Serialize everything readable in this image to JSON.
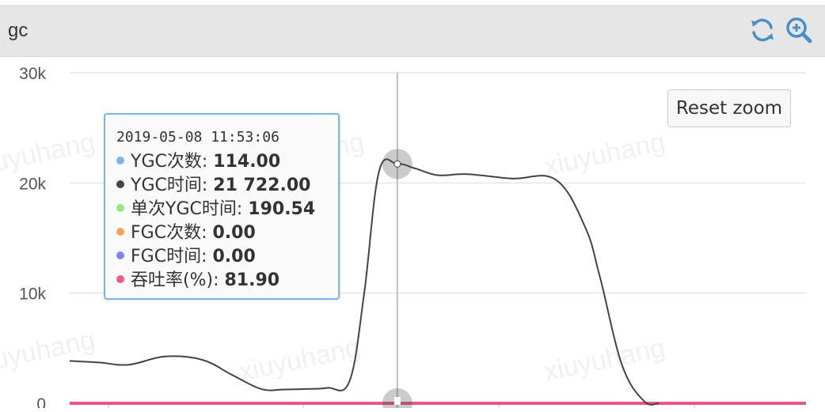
{
  "panel": {
    "title": "gc",
    "refresh_icon": "refresh-icon",
    "zoom_icon": "zoom-in-icon"
  },
  "reset_zoom_label": "Reset zoom",
  "watermark": "xiuyuhang",
  "tooltip": {
    "time": "2019-05-08 11:53:06",
    "rows": [
      {
        "label": "YGC次数: ",
        "value": "114.00",
        "color": "#7cb5ec"
      },
      {
        "label": "YGC时间: ",
        "value": "21 722.00",
        "color": "#434348"
      },
      {
        "label": "单次YGC时间: ",
        "value": "190.54",
        "color": "#90ed7d"
      },
      {
        "label": "FGC次数: ",
        "value": "0.00",
        "color": "#f7a35c"
      },
      {
        "label": "FGC时间: ",
        "value": "0.00",
        "color": "#8085e9"
      },
      {
        "label": "吞吐率(%): ",
        "value": "81.90",
        "color": "#f15c80"
      }
    ]
  },
  "chart_data": {
    "type": "line",
    "ylim": [
      0,
      30000
    ],
    "yticks": [
      "0",
      "10k",
      "20k",
      "30k"
    ],
    "x_range": [
      0,
      100
    ],
    "series": [
      {
        "name": "YGC时间",
        "color": "#434348",
        "x": [
          0,
          4,
          8,
          13,
          18,
          22,
          26,
          29,
          32,
          35,
          38,
          40,
          42,
          44.5,
          47,
          50,
          54,
          60,
          66,
          70,
          72,
          75,
          78,
          80
        ],
        "values": [
          3850,
          3700,
          3500,
          4250,
          3950,
          2600,
          1300,
          1250,
          1300,
          1400,
          2000,
          10000,
          21000,
          21722,
          21300,
          20700,
          20800,
          20400,
          20300,
          16000,
          11500,
          3500,
          200,
          0
        ]
      },
      {
        "name": "吞吐率(%)",
        "color": "#e8568a",
        "x": [
          0,
          100
        ],
        "values": [
          0,
          0
        ]
      }
    ],
    "crosshair_x": 44.5
  }
}
